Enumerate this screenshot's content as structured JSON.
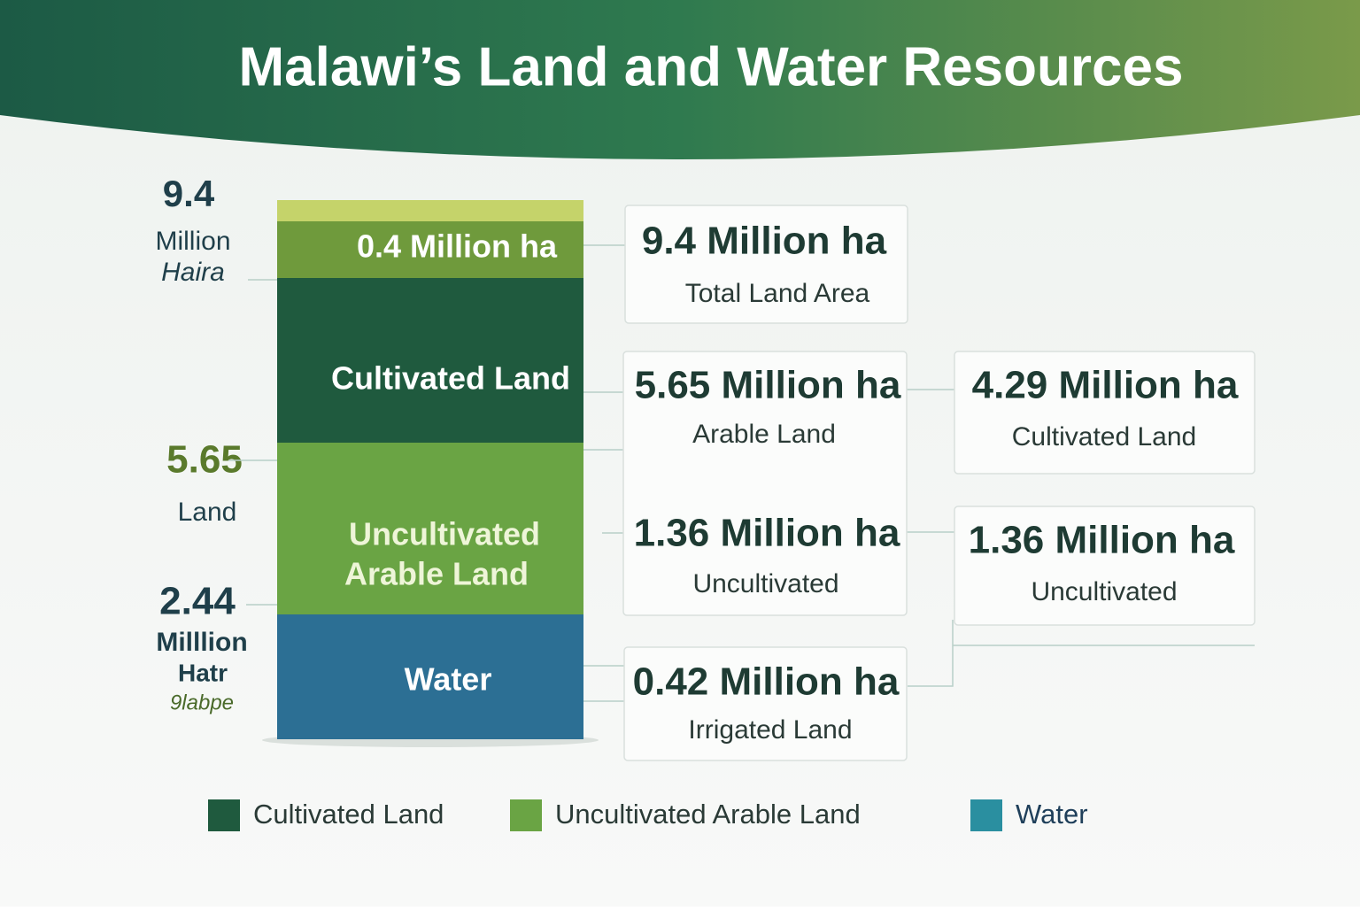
{
  "header": {
    "title": "Malawi’s Land and Water Resources"
  },
  "side_labels": [
    "9.4",
    "Million",
    "Haira",
    "5.65",
    "Land",
    "2.44",
    "Milllion",
    "Hatr",
    "9labpe"
  ],
  "bar": {
    "segments": [
      "0.4 Million ha",
      "Cultivated Land",
      "Uncultivated",
      "Arable Land",
      "Water"
    ]
  },
  "boxes": [
    {
      "value": "9.4 Million ha",
      "label": "Total Land Area"
    },
    {
      "value": "5.65 Million ha",
      "label": "Arable Land"
    },
    {
      "value": "1.36 Million ha",
      "label": "Uncultivated"
    },
    {
      "value": "4.29 Million ha",
      "label": "Cultivated Land"
    },
    {
      "value": "1.36 Million ha",
      "label": "Uncultivated"
    },
    {
      "value": "0.42 Million ha",
      "label": "Irrigated Land"
    }
  ],
  "legend": [
    "Cultivated Land",
    "Uncultivated Arable Land",
    "Water"
  ]
}
